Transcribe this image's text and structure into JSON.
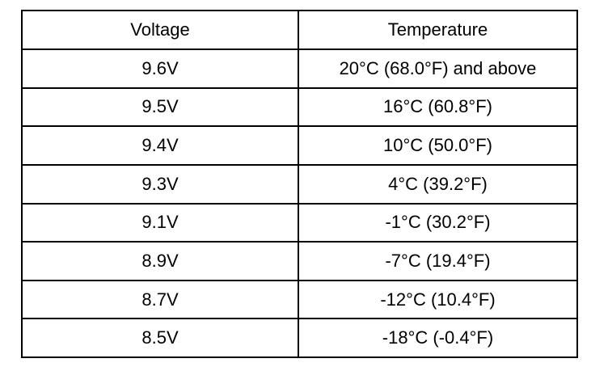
{
  "table": {
    "header": [
      "Voltage",
      "Temperature"
    ],
    "rows": [
      [
        "9.6V",
        "20°C (68.0°F) and above"
      ],
      [
        "9.5V",
        "16°C (60.8°F)"
      ],
      [
        "9.4V",
        "10°C (50.0°F)"
      ],
      [
        "9.3V",
        "4°C (39.2°F)"
      ],
      [
        "9.1V",
        "-1°C (30.2°F)"
      ],
      [
        "8.9V",
        "-7°C (19.4°F)"
      ],
      [
        "8.7V",
        "-12°C (10.4°F)"
      ],
      [
        "8.5V",
        "-18°C (-0.4°F)"
      ]
    ]
  }
}
